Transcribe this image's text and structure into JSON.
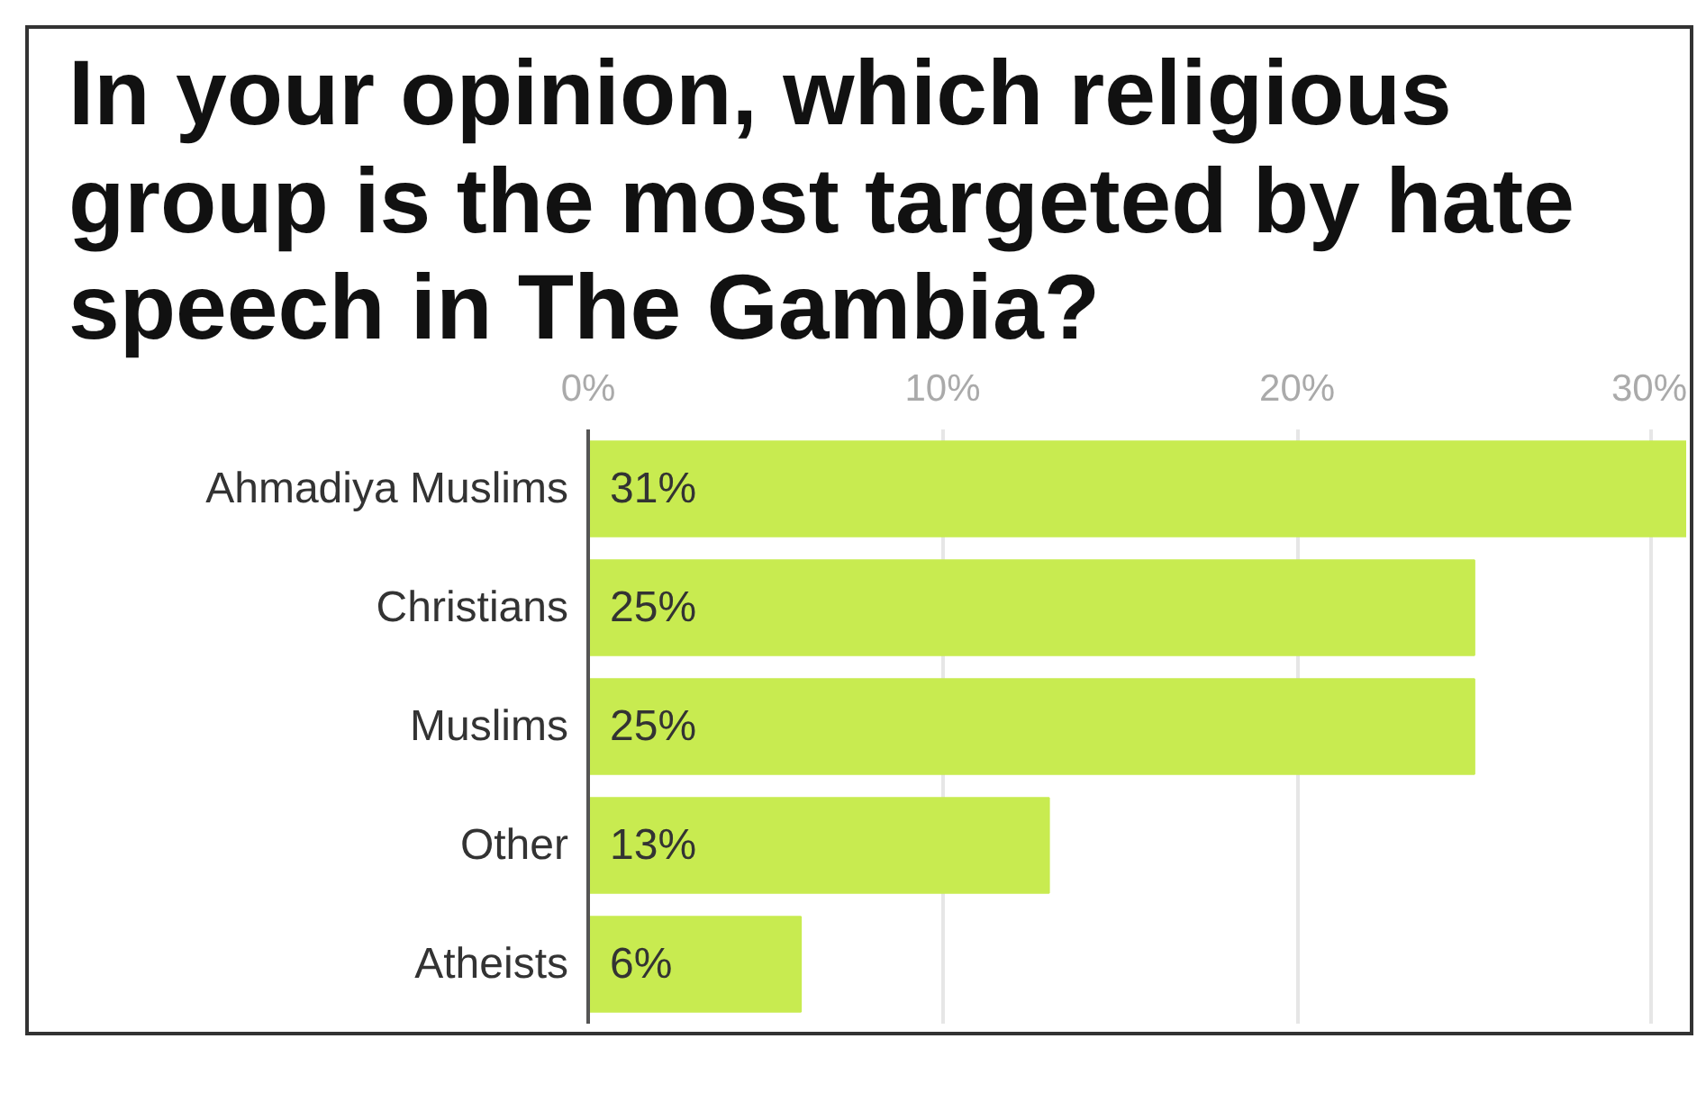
{
  "chart_data": {
    "type": "bar",
    "orientation": "horizontal",
    "title": "In your opinion, which religious group is the most targeted by hate speech in The Gambia?",
    "categories": [
      "Ahmadiya Muslims",
      "Christians",
      "Muslims",
      "Other",
      "Atheists"
    ],
    "values": [
      31,
      25,
      25,
      13,
      6
    ],
    "value_labels": [
      "31%",
      "25%",
      "25%",
      "13%",
      "6%"
    ],
    "color": "#c8eb50",
    "xlim": [
      0,
      31
    ],
    "xticks": [
      {
        "value": 0,
        "label": "0%"
      },
      {
        "value": 10,
        "label": "10%"
      },
      {
        "value": 20,
        "label": "20%"
      },
      {
        "value": 30,
        "label": "30%"
      }
    ],
    "grid": "x"
  }
}
